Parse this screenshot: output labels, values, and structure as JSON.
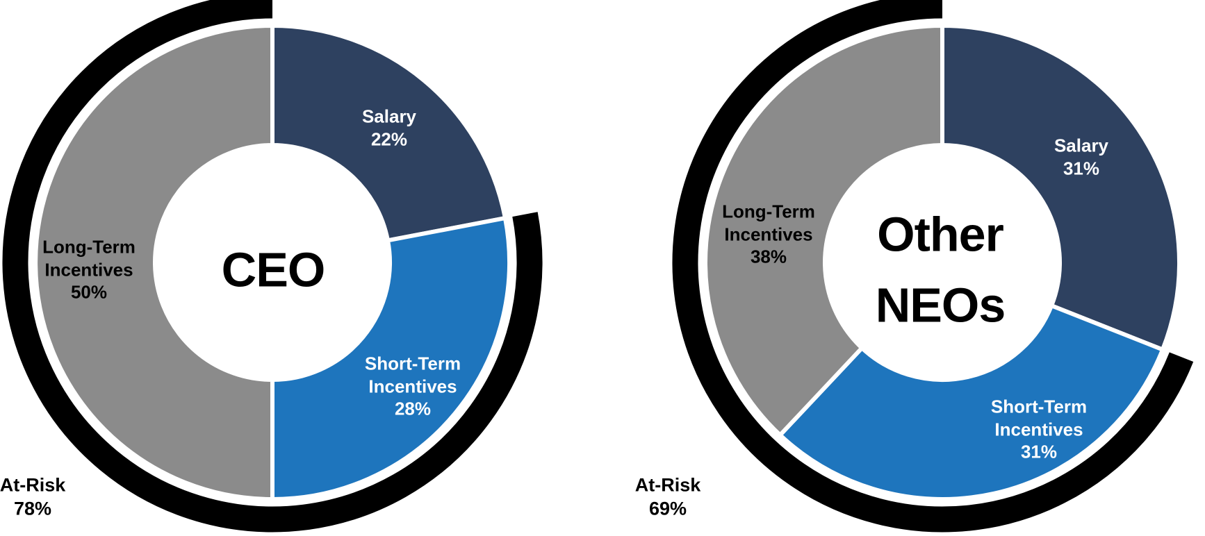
{
  "page": {
    "background": "#FFFFFF"
  },
  "chart_data": [
    {
      "type": "pie",
      "subtype": "donut",
      "center_label": "CEO",
      "start_angle_deg": 0,
      "direction": "clockwise",
      "donut_hole": true,
      "slices": [
        {
          "label": "Salary",
          "value": 22,
          "pct_text": "22%",
          "color": "#2E4160",
          "label_color": "#FFFFFF"
        },
        {
          "label": "Short-Term Incentives",
          "value": 28,
          "pct_text": "28%",
          "color": "#1E75BD",
          "label_color": "#FFFFFF"
        },
        {
          "label": "Long-Term Incentives",
          "value": 50,
          "pct_text": "50%",
          "color": "#8B8B8B",
          "label_color": "#000000"
        }
      ],
      "outer_ring": {
        "label": "At-Risk",
        "value": 78,
        "pct_text": "78%",
        "color": "#000000"
      }
    },
    {
      "type": "pie",
      "subtype": "donut",
      "center_label": "Other NEOs",
      "start_angle_deg": 0,
      "direction": "clockwise",
      "donut_hole": true,
      "slices": [
        {
          "label": "Salary",
          "value": 31,
          "pct_text": "31%",
          "color": "#2E4160",
          "label_color": "#FFFFFF"
        },
        {
          "label": "Short-Term Incentives",
          "value": 31,
          "pct_text": "31%",
          "color": "#1E75BD",
          "label_color": "#FFFFFF"
        },
        {
          "label": "Long-Term Incentives",
          "value": 38,
          "pct_text": "38%",
          "color": "#8B8B8B",
          "label_color": "#000000"
        }
      ],
      "outer_ring": {
        "label": "At-Risk",
        "value": 69,
        "pct_text": "69%",
        "color": "#000000"
      }
    }
  ]
}
